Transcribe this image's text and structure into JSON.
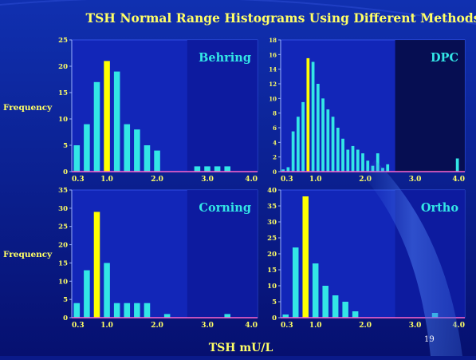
{
  "title": "TSH Normal Range Histograms Using Different Methods",
  "xaxis_title": "TSH mU/L",
  "ylabel": "Frequency",
  "page_number": "19",
  "colors": {
    "background": "#0a1a8a",
    "plot_area": "#1226b8",
    "plot_dark": "#0d1a9a",
    "bar": "#33e6e6",
    "highlight_bar": "#ffff00",
    "title_text": "#ffff66",
    "axis_text": "#ffff66",
    "panel_label": "#33e6e6",
    "axis_line": "#ff66cc"
  },
  "chart_data": [
    {
      "type": "bar",
      "title": "Behring",
      "ylabel": "Frequency",
      "xlim": [
        0.3,
        4.0
      ],
      "ylim": [
        0,
        25
      ],
      "xticks": [
        "0.3",
        "1.0",
        "2.0",
        "3.0",
        "4.0"
      ],
      "yticks": [
        "0",
        "5",
        "10",
        "15",
        "20",
        "25"
      ],
      "bin_start": 0.3,
      "bin_width": 0.2,
      "values": [
        5,
        9,
        17,
        21,
        19,
        9,
        8,
        5,
        4,
        0,
        0,
        0,
        1,
        1,
        1,
        1
      ],
      "highlight_index": 3
    },
    {
      "type": "bar",
      "title": "DPC",
      "xlim": [
        0.3,
        4.0
      ],
      "ylim": [
        0,
        18
      ],
      "xticks": [
        "0.3",
        "1.0",
        "2.0",
        "3.0",
        "4.0"
      ],
      "yticks": [
        "0",
        "2",
        "4",
        "6",
        "8",
        "10",
        "12",
        "14",
        "16",
        "18"
      ],
      "bin_start": 0.3,
      "bin_width": 0.1,
      "values": [
        0.3,
        0.6,
        5.5,
        7.5,
        9.5,
        15.5,
        15,
        12,
        10,
        8.5,
        7.5,
        6,
        4.5,
        3,
        3.5,
        3,
        2.5,
        1.5,
        0.8,
        2.5,
        0.5,
        1,
        0,
        0,
        0,
        0,
        0,
        0,
        0,
        0,
        0,
        0,
        0,
        0,
        0,
        1.8
      ],
      "highlight_index": 5
    },
    {
      "type": "bar",
      "title": "Corning",
      "ylabel": "Frequency",
      "xlim": [
        0.3,
        4.0
      ],
      "ylim": [
        0,
        35
      ],
      "xticks": [
        "0.3",
        "1.0",
        "2.0",
        "3.0",
        "4.0"
      ],
      "yticks": [
        "0",
        "5",
        "10",
        "15",
        "20",
        "25",
        "30",
        "35"
      ],
      "bin_start": 0.3,
      "bin_width": 0.2,
      "values": [
        4,
        13,
        29,
        15,
        4,
        4,
        4,
        4,
        0,
        1,
        0,
        0,
        0,
        0,
        0,
        1
      ],
      "highlight_index": 2
    },
    {
      "type": "bar",
      "title": "Ortho",
      "xlim": [
        0.3,
        4.0
      ],
      "ylim": [
        0,
        40
      ],
      "xticks": [
        "0.3",
        "1.0",
        "2.0",
        "3.0",
        "4.0"
      ],
      "yticks": [
        "0",
        "5",
        "10",
        "15",
        "20",
        "25",
        "30",
        "35",
        "40"
      ],
      "bin_start": 0.3,
      "bin_width": 0.2,
      "values": [
        1,
        22,
        38,
        17,
        10,
        7,
        5,
        2,
        0,
        0,
        0,
        0,
        0,
        0,
        0,
        1.5
      ],
      "highlight_index": 2
    }
  ]
}
